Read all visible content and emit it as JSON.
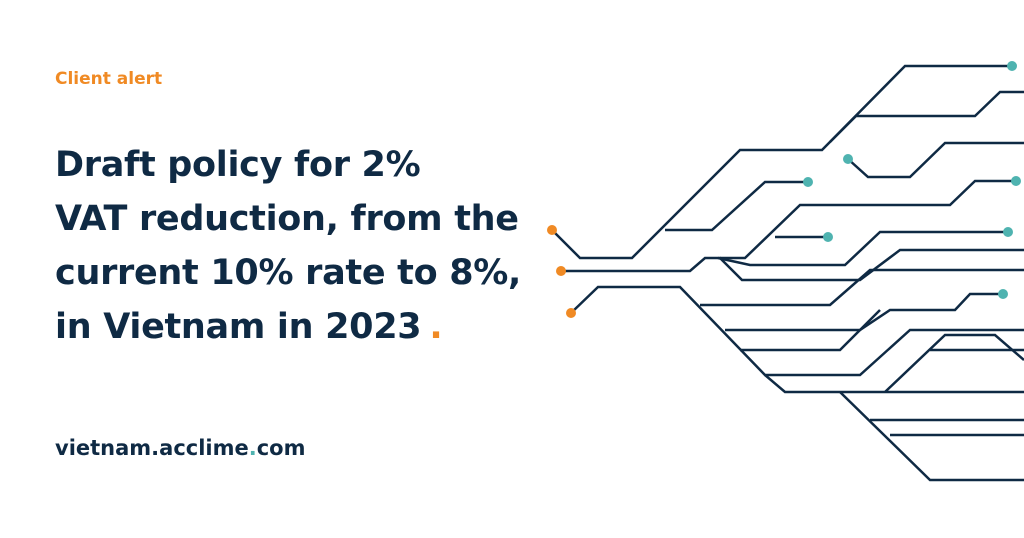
{
  "label": "Client alert",
  "title": {
    "lines": [
      "Draft policy for 2%",
      "VAT reduction, from the",
      "current 10% rate to 8%,",
      "in Vietnam in 2023"
    ],
    "mark": "."
  },
  "footer": {
    "parts": [
      "vietnam.acclime",
      ".",
      "com"
    ]
  }
}
